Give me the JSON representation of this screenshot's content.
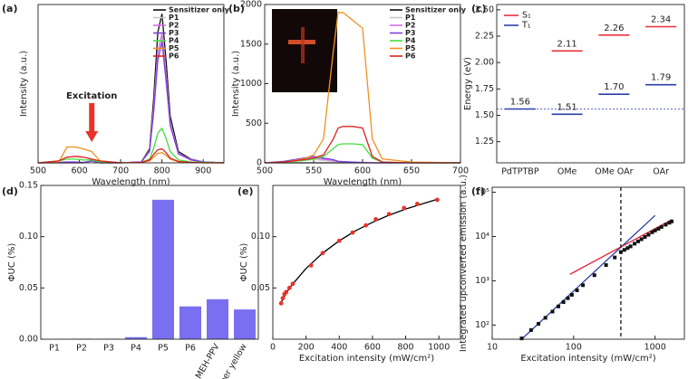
{
  "chart_data": [
    {
      "type": "line",
      "panel": "(a)",
      "xlabel": "Wavelength (nm)",
      "ylabel": "Intensity (a.u.)",
      "annotation": "Excitation",
      "xlim": [
        500,
        950
      ],
      "xticks": [
        500,
        600,
        700,
        800,
        900
      ],
      "ylim": [
        0,
        1700
      ],
      "x": [
        500,
        550,
        570,
        590,
        610,
        630,
        650,
        700,
        750,
        770,
        780,
        790,
        800,
        810,
        820,
        840,
        870,
        900,
        950
      ],
      "series": [
        {
          "name": "Sensitizer only",
          "color": "#111111",
          "values": [
            0,
            0,
            0,
            0,
            0,
            20,
            0,
            0,
            10,
            150,
            700,
            1400,
            1600,
            1100,
            500,
            120,
            40,
            10,
            0
          ]
        },
        {
          "name": "P1",
          "color": "#c8c8c8",
          "values": [
            0,
            0,
            0,
            0,
            0,
            20,
            0,
            0,
            10,
            130,
            600,
            1200,
            1400,
            950,
            430,
            100,
            35,
            10,
            0
          ]
        },
        {
          "name": "P2",
          "color": "#d46fe6",
          "values": [
            0,
            0,
            0,
            0,
            0,
            20,
            0,
            0,
            10,
            130,
            600,
            1180,
            1380,
            940,
            420,
            100,
            35,
            10,
            0
          ]
        },
        {
          "name": "P3",
          "color": "#7f3fd6",
          "values": [
            0,
            5,
            10,
            10,
            5,
            20,
            0,
            0,
            10,
            120,
            550,
            1100,
            1300,
            880,
            400,
            95,
            30,
            10,
            0
          ]
        },
        {
          "name": "P4",
          "color": "#3fe03f",
          "values": [
            0,
            20,
            40,
            40,
            30,
            30,
            10,
            0,
            5,
            40,
            160,
            320,
            370,
            260,
            120,
            30,
            10,
            5,
            0
          ]
        },
        {
          "name": "P5",
          "color": "#f09020",
          "values": [
            0,
            10,
            170,
            170,
            150,
            120,
            20,
            0,
            5,
            20,
            60,
            100,
            110,
            80,
            40,
            10,
            5,
            0,
            0
          ]
        },
        {
          "name": "P6",
          "color": "#e02020",
          "values": [
            0,
            20,
            60,
            70,
            60,
            40,
            20,
            0,
            5,
            30,
            90,
            140,
            150,
            110,
            50,
            15,
            5,
            0,
            0
          ]
        }
      ]
    },
    {
      "type": "line",
      "panel": "(b)",
      "xlabel": "Wavelength (nm)",
      "ylabel": "Intensity (a.u.)",
      "xlim": [
        500,
        700
      ],
      "xticks": [
        500,
        550,
        600,
        650,
        700
      ],
      "ylim": [
        0,
        2000
      ],
      "yticks": [
        0,
        500,
        1000,
        1500,
        2000
      ],
      "x": [
        500,
        520,
        540,
        550,
        560,
        570,
        575,
        580,
        590,
        600,
        610,
        620,
        650,
        700
      ],
      "series": [
        {
          "name": "Sensitizer only",
          "color": "#111111",
          "values": [
            0,
            0,
            0,
            0,
            0,
            0,
            0,
            0,
            0,
            0,
            0,
            0,
            0,
            0
          ]
        },
        {
          "name": "P1",
          "color": "#c8c8c8",
          "values": [
            0,
            10,
            30,
            40,
            30,
            20,
            10,
            10,
            5,
            5,
            0,
            0,
            0,
            0
          ]
        },
        {
          "name": "P2",
          "color": "#d46fe6",
          "values": [
            0,
            15,
            45,
            60,
            45,
            30,
            15,
            15,
            8,
            5,
            0,
            0,
            0,
            0
          ]
        },
        {
          "name": "P3",
          "color": "#7f3fd6",
          "values": [
            0,
            20,
            60,
            80,
            60,
            40,
            20,
            15,
            10,
            5,
            0,
            0,
            0,
            0
          ]
        },
        {
          "name": "P4",
          "color": "#3fe03f",
          "values": [
            0,
            10,
            30,
            50,
            80,
            180,
            230,
            240,
            240,
            230,
            60,
            10,
            0,
            0
          ]
        },
        {
          "name": "P5",
          "color": "#f09020",
          "values": [
            0,
            10,
            50,
            100,
            300,
            1400,
            1900,
            1900,
            1800,
            1700,
            300,
            50,
            10,
            0
          ]
        },
        {
          "name": "P6",
          "color": "#e02020",
          "values": [
            0,
            10,
            40,
            60,
            100,
            300,
            440,
            460,
            460,
            440,
            80,
            10,
            0,
            0
          ]
        }
      ]
    },
    {
      "type": "level",
      "panel": "(c)",
      "ylabel": "Energy (eV)",
      "categories": [
        "PdTPTBP",
        "OMe",
        "OMe OAr",
        "OAr"
      ],
      "ylim": [
        1.05,
        2.55
      ],
      "yticks": [
        1.25,
        {
          "value": 1.5,
          "label": "1.50"
        },
        1.75,
        {
          "value": 2.0,
          "label": "2.00"
        },
        2.25,
        {
          "value": 2.5,
          "label": "2.50"
        }
      ],
      "series": [
        {
          "name": "S₁",
          "color": "#e8303a",
          "values": [
            null,
            2.11,
            2.26,
            2.34
          ],
          "value_labels": [
            null,
            "2.11",
            "2.26",
            "2.34"
          ]
        },
        {
          "name": "T₁",
          "color": "#2a3fa8",
          "values": [
            1.56,
            1.51,
            1.7,
            1.79
          ],
          "value_labels": [
            "1.56",
            "1.51",
            "1.70",
            "1.79"
          ]
        }
      ]
    },
    {
      "type": "bar",
      "panel": "(d)",
      "ylabel": "ΦUC (%)",
      "color": "#7a6ff0",
      "categories": [
        "P1",
        "P2",
        "P3",
        "P4",
        "P5",
        "P6",
        "MEH-PPV",
        "Super yellow"
      ],
      "values": [
        0,
        0.0005,
        0.0005,
        0.002,
        0.136,
        0.032,
        0.039,
        0.029
      ],
      "ylim": [
        0,
        0.15
      ],
      "yticks": [
        {
          "value": 0,
          "label": "0.00"
        },
        0.05,
        {
          "value": 0.1,
          "label": "0.10"
        },
        0.15
      ]
    },
    {
      "type": "scatter",
      "panel": "(e)",
      "xlabel": "Excitation intensity (mW/cm²)",
      "ylabel": "ΦUC (%)",
      "marker": "circle",
      "color": "#e8332a",
      "xlim": [
        0,
        1130
      ],
      "xticks": [
        0,
        200,
        400,
        600,
        800,
        1000
      ],
      "ylim": [
        0,
        0.15
      ],
      "yticks": [
        0.05,
        {
          "value": 0.1,
          "label": "0.10"
        }
      ],
      "x": [
        50,
        60,
        70,
        80,
        100,
        120,
        230,
        300,
        400,
        480,
        560,
        620,
        700,
        790,
        870,
        990
      ],
      "values": [
        0.035,
        0.04,
        0.044,
        0.046,
        0.05,
        0.054,
        0.072,
        0.084,
        0.096,
        0.104,
        0.111,
        0.117,
        0.122,
        0.128,
        0.132,
        0.136
      ],
      "lines": [
        {
          "color": "#000000",
          "x": [
            50,
            100,
            200,
            300,
            400,
            500,
            600,
            700,
            800,
            900,
            1000
          ],
          "values": [
            0.036,
            0.05,
            0.069,
            0.084,
            0.096,
            0.106,
            0.114,
            0.121,
            0.127,
            0.132,
            0.137
          ]
        }
      ]
    },
    {
      "type": "scatter",
      "panel": "(f)",
      "xlabel": "Excitation intensity (mW/cm²)",
      "ylabel": "Integrated upconverted emission (a.u.)",
      "marker": "square",
      "color": "#111111",
      "log": true,
      "xlim": [
        10,
        2290
      ],
      "xticks": [
        10,
        100,
        1000
      ],
      "ylim": [
        48,
        130000
      ],
      "yticks": [
        {
          "value": 100,
          "label": "10²"
        },
        {
          "value": 1000,
          "label": "10³"
        },
        {
          "value": 10000,
          "label": "10⁴"
        },
        {
          "value": 100000,
          "label": "10⁵"
        }
      ],
      "x": [
        23,
        30,
        37,
        45,
        55,
        65,
        75,
        85,
        95,
        110,
        130,
        180,
        250,
        320,
        380,
        420,
        460,
        500,
        560,
        620,
        680,
        750,
        830,
        920,
        1000,
        1100,
        1200,
        1350,
        1500,
        1600
      ],
      "values": [
        50,
        77,
        107,
        146,
        202,
        264,
        331,
        405,
        483,
        612,
        797,
        1340,
        2270,
        3370,
        4480,
        5000,
        5500,
        6000,
        6900,
        7800,
        8700,
        9800,
        11000,
        12500,
        13700,
        15000,
        16500,
        18500,
        20500,
        22000
      ],
      "lines": [
        {
          "color": "#2a3fa8",
          "x": [
            23,
            1000
          ],
          "values": [
            48,
            30000
          ]
        },
        {
          "color": "#e02030",
          "x": [
            90,
            1600
          ],
          "values": [
            1400,
            24000
          ]
        }
      ],
      "threshold": 380
    }
  ]
}
